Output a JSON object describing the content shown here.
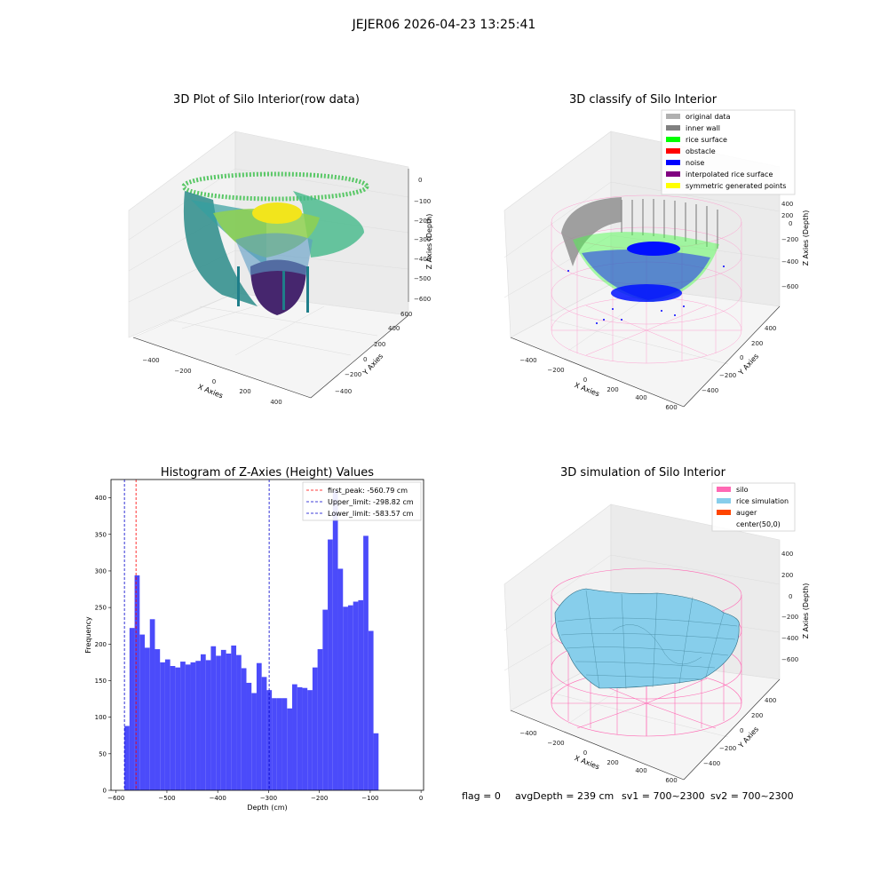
{
  "figure_title": "JEJER06 2026-04-23 13:25:41",
  "footer": {
    "flag": "flag = 0",
    "avg_depth": "avgDepth = 239 cm",
    "sv1": "sv1 = 700~2300",
    "sv2": "sv2 = 700~2300"
  },
  "colors": {
    "hist_bar": "#4b4bfa",
    "peak_line": "#ff0000",
    "limit_line": "#0000cc",
    "original": "#b0b0b0",
    "inner_wall": "#808080",
    "rice_surface": "#00ff00",
    "obstacle": "#ff0000",
    "noise": "#0000ff",
    "interpolated": "#800080",
    "symmetric": "#ffff00",
    "silo": "#ff69b4",
    "rice_sim": "#87ceeb",
    "auger": "#ff4500"
  },
  "chart_data": [
    {
      "type": "scatter",
      "subtype": "3d",
      "title": "3D Plot of Silo Interior(row data)",
      "xlabel": "X Axies",
      "ylabel": "Y Axies",
      "zlabel": "Z Axies (Depth)",
      "xticks": [
        "−400",
        "−200",
        "0",
        "200",
        "400"
      ],
      "yticks": [
        "−400",
        "−200",
        "0",
        "200",
        "400",
        "600"
      ],
      "zticks": [
        "0",
        "−100",
        "−200",
        "−300",
        "−400",
        "−500",
        "−600"
      ],
      "colormap": "viridis"
    },
    {
      "type": "scatter",
      "subtype": "3d",
      "title": "3D classify of Silo Interior",
      "xlabel": "X Axies",
      "ylabel": "Y Axies",
      "zlabel": "Z Axies (Depth)",
      "xticks": [
        "−400",
        "−200",
        "0",
        "200",
        "400",
        "600"
      ],
      "yticks": [
        "−400",
        "−200",
        "0",
        "200",
        "400"
      ],
      "zticks": [
        "400",
        "200",
        "0",
        "−200",
        "−400",
        "−600"
      ],
      "legend_position": "top-right",
      "legend": [
        {
          "label": "original data",
          "color": "#b0b0b0"
        },
        {
          "label": "inner wall",
          "color": "#808080"
        },
        {
          "label": "rice surface",
          "color": "#00ff00"
        },
        {
          "label": "obstacle",
          "color": "#ff0000"
        },
        {
          "label": "noise",
          "color": "#0000ff"
        },
        {
          "label": "interpolated rice surface",
          "color": "#800080"
        },
        {
          "label": "symmetric generated points",
          "color": "#ffff00"
        }
      ]
    },
    {
      "type": "bar",
      "subtype": "histogram",
      "title": "Histogram of Z-Axies (Height) Values",
      "xlabel": "Depth (cm)",
      "ylabel": "Frequency",
      "xlim": [
        -610,
        5
      ],
      "ylim": [
        0,
        425
      ],
      "xticks": [
        -600,
        -500,
        -400,
        -300,
        -200,
        -100,
        0
      ],
      "yticks": [
        0,
        50,
        100,
        150,
        200,
        250,
        300,
        350,
        400
      ],
      "bin_start": -583.57,
      "bin_width": 10.0,
      "values": [
        88,
        222,
        294,
        213,
        195,
        234,
        193,
        175,
        179,
        170,
        168,
        176,
        172,
        175,
        177,
        186,
        178,
        197,
        184,
        192,
        187,
        198,
        185,
        167,
        147,
        133,
        174,
        155,
        137,
        126,
        126,
        126,
        112,
        145,
        141,
        140,
        137,
        168,
        193,
        247,
        343,
        410,
        303,
        251,
        253,
        258,
        260,
        348,
        218,
        78
      ],
      "legend_position": "top-right",
      "vlines": [
        {
          "label": "first_peak: -560.79 cm",
          "x": -560.79,
          "color": "#ff0000"
        },
        {
          "label": "Upper_limit: -298.82 cm",
          "x": -298.82,
          "color": "#0000cc"
        },
        {
          "label": "Lower_limit: -583.57 cm",
          "x": -583.57,
          "color": "#0000cc"
        }
      ]
    },
    {
      "type": "area",
      "subtype": "3d-surface",
      "title": "3D simulation of Silo Interior",
      "xlabel": "X Axies",
      "ylabel": "Y Axies",
      "zlabel": "Z Axies (Depth)",
      "xticks": [
        "−400",
        "−200",
        "0",
        "200",
        "400",
        "600"
      ],
      "yticks": [
        "−400",
        "−200",
        "0",
        "200",
        "400"
      ],
      "zticks": [
        "400",
        "200",
        "0",
        "−200",
        "−400",
        "−600"
      ],
      "legend_position": "top-right",
      "legend": [
        {
          "label": "silo",
          "color": "#ff69b4"
        },
        {
          "label": "rice simulation",
          "color": "#87ceeb"
        },
        {
          "label": "auger",
          "color": "#ff4500"
        },
        {
          "label": "center(50,0)",
          "color": ""
        }
      ]
    }
  ]
}
